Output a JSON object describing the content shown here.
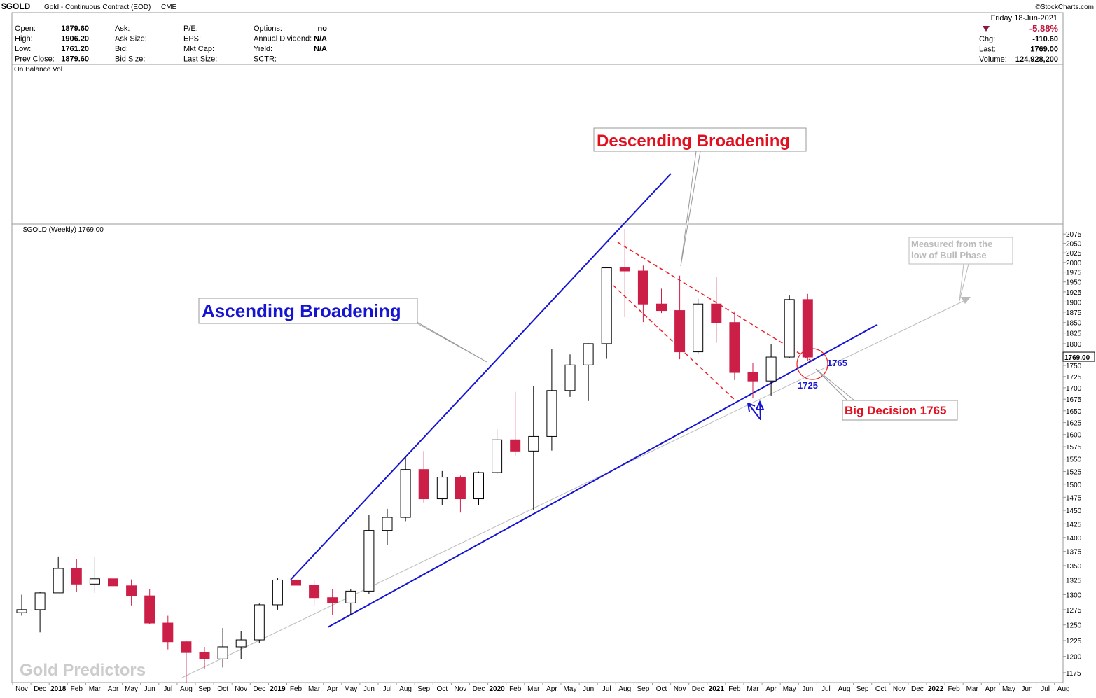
{
  "header": {
    "symbol": "$GOLD",
    "title": "Gold - Continuous Contract (EOD)",
    "exchange": "CME",
    "copyright": "©StockCharts.com",
    "date": "Friday  18-Jun-2021",
    "change_pct": "-5.88%",
    "fields": [
      [
        "Open:",
        "1879.60"
      ],
      [
        "High:",
        "1906.20"
      ],
      [
        "Low:",
        "1761.20"
      ],
      [
        "Prev Close:",
        "1879.60"
      ],
      [
        "Ask:",
        ""
      ],
      [
        "Ask Size:",
        ""
      ],
      [
        "Bid:",
        ""
      ],
      [
        "Bid Size:",
        ""
      ],
      [
        "P/E:",
        ""
      ],
      [
        "EPS:",
        ""
      ],
      [
        "Mkt Cap:",
        ""
      ],
      [
        "Last Size:",
        ""
      ],
      [
        "Options:",
        "no"
      ],
      [
        "Annual Dividend:",
        "N/A"
      ],
      [
        "Yield:",
        "N/A"
      ],
      [
        "SCTR:",
        ""
      ]
    ],
    "right_fields": [
      [
        "Chg:",
        "-110.60"
      ],
      [
        "Last:",
        "1769.00"
      ],
      [
        "Volume:",
        "124,928,200"
      ]
    ],
    "indicator": "On Balance Vol",
    "watermark": "Gold Predictors"
  },
  "chart_data": {
    "type": "candlestick",
    "legend": "$GOLD (Weekly) 1769.00",
    "last_label": "1769.00",
    "log_scale": true,
    "up_color": "#ffffff",
    "down_color": "#cc1f48",
    "x": [
      "2017-11",
      "2017-12",
      "2018-01",
      "2018-02",
      "2018-03",
      "2018-04",
      "2018-05",
      "2018-06",
      "2018-07",
      "2018-08",
      "2018-09",
      "2018-10",
      "2018-11",
      "2018-12",
      "2019-01",
      "2019-02",
      "2019-03",
      "2019-04",
      "2019-05",
      "2019-06",
      "2019-07",
      "2019-08",
      "2019-09",
      "2019-10",
      "2019-11",
      "2019-12",
      "2020-01",
      "2020-02",
      "2020-03",
      "2020-04",
      "2020-05",
      "2020-06",
      "2020-07",
      "2020-08",
      "2020-09",
      "2020-10",
      "2020-11",
      "2020-12",
      "2021-01",
      "2021-02",
      "2021-03",
      "2021-04",
      "2021-05",
      "2021-06"
    ],
    "open": [
      1270,
      1275,
      1303,
      1345,
      1318,
      1327,
      1315,
      1298,
      1253,
      1223,
      1206,
      1196,
      1215,
      1226,
      1283,
      1325,
      1316,
      1295,
      1286,
      1306,
      1413,
      1437,
      1529,
      1472,
      1514,
      1472,
      1523,
      1589,
      1566,
      1596,
      1694,
      1751,
      1800,
      1986,
      1978,
      1895,
      1879,
      1781,
      1895,
      1850,
      1734,
      1715,
      1769,
      1906
    ],
    "high": [
      1300,
      1305,
      1366,
      1362,
      1365,
      1369,
      1326,
      1309,
      1265,
      1225,
      1215,
      1245,
      1240,
      1285,
      1328,
      1350,
      1325,
      1310,
      1310,
      1442,
      1453,
      1555,
      1566,
      1526,
      1517,
      1525,
      1611,
      1691,
      1704,
      1788,
      1775,
      1801,
      1985,
      2089,
      1992,
      1933,
      1966,
      1908,
      1962,
      1877,
      1755,
      1799,
      1916,
      1920
    ],
    "low": [
      1265,
      1238,
      1303,
      1305,
      1303,
      1310,
      1282,
      1251,
      1211,
      1160,
      1180,
      1183,
      1196,
      1221,
      1275,
      1310,
      1281,
      1266,
      1267,
      1301,
      1386,
      1430,
      1465,
      1460,
      1446,
      1460,
      1520,
      1557,
      1451,
      1567,
      1680,
      1671,
      1765,
      1863,
      1851,
      1873,
      1764,
      1776,
      1802,
      1717,
      1677,
      1682,
      1767,
      1761
    ],
    "close": [
      1275,
      1303,
      1345,
      1318,
      1327,
      1315,
      1298,
      1253,
      1223,
      1206,
      1196,
      1215,
      1226,
      1283,
      1325,
      1316,
      1295,
      1286,
      1306,
      1413,
      1437,
      1529,
      1472,
      1514,
      1472,
      1523,
      1589,
      1566,
      1596,
      1694,
      1751,
      1800,
      1986,
      1978,
      1895,
      1879,
      1781,
      1895,
      1850,
      1734,
      1715,
      1769,
      1906,
      1769
    ],
    "ylim": [
      1160,
      2102
    ],
    "yticks": [
      1175,
      1200,
      1225,
      1250,
      1275,
      1300,
      1325,
      1350,
      1375,
      1400,
      1425,
      1450,
      1475,
      1500,
      1525,
      1550,
      1575,
      1600,
      1625,
      1650,
      1675,
      1700,
      1725,
      1750,
      1775,
      1800,
      1825,
      1850,
      1875,
      1900,
      1925,
      1950,
      1975,
      2000,
      2025,
      2050,
      2075
    ],
    "xticks": [
      {
        "value": "2017-11",
        "label": "Nov"
      },
      {
        "value": "2017-12",
        "label": "Dec"
      },
      {
        "value": "2018-01",
        "label": "2018"
      },
      {
        "value": "2018-02",
        "label": "Feb"
      },
      {
        "value": "2018-03",
        "label": "Mar"
      },
      {
        "value": "2018-04",
        "label": "Apr"
      },
      {
        "value": "2018-05",
        "label": "May"
      },
      {
        "value": "2018-06",
        "label": "Jun"
      },
      {
        "value": "2018-07",
        "label": "Jul"
      },
      {
        "value": "2018-08",
        "label": "Aug"
      },
      {
        "value": "2018-09",
        "label": "Sep"
      },
      {
        "value": "2018-10",
        "label": "Oct"
      },
      {
        "value": "2018-11",
        "label": "Nov"
      },
      {
        "value": "2018-12",
        "label": "Dec"
      },
      {
        "value": "2019-01",
        "label": "2019"
      },
      {
        "value": "2019-02",
        "label": "Feb"
      },
      {
        "value": "2019-03",
        "label": "Mar"
      },
      {
        "value": "2019-04",
        "label": "Apr"
      },
      {
        "value": "2019-05",
        "label": "May"
      },
      {
        "value": "2019-06",
        "label": "Jun"
      },
      {
        "value": "2019-07",
        "label": "Jul"
      },
      {
        "value": "2019-08",
        "label": "Aug"
      },
      {
        "value": "2019-09",
        "label": "Sep"
      },
      {
        "value": "2019-10",
        "label": "Oct"
      },
      {
        "value": "2019-11",
        "label": "Nov"
      },
      {
        "value": "2019-12",
        "label": "Dec"
      },
      {
        "value": "2020-01",
        "label": "2020"
      },
      {
        "value": "2020-02",
        "label": "Feb"
      },
      {
        "value": "2020-03",
        "label": "Mar"
      },
      {
        "value": "2020-04",
        "label": "Apr"
      },
      {
        "value": "2020-05",
        "label": "May"
      },
      {
        "value": "2020-06",
        "label": "Jun"
      },
      {
        "value": "2020-07",
        "label": "Jul"
      },
      {
        "value": "2020-08",
        "label": "Aug"
      },
      {
        "value": "2020-09",
        "label": "Sep"
      },
      {
        "value": "2020-10",
        "label": "Oct"
      },
      {
        "value": "2020-11",
        "label": "Nov"
      },
      {
        "value": "2020-12",
        "label": "Dec"
      },
      {
        "value": "2021-01",
        "label": "2021"
      },
      {
        "value": "2021-02",
        "label": "Feb"
      },
      {
        "value": "2021-03",
        "label": "Mar"
      },
      {
        "value": "2021-04",
        "label": "Apr"
      },
      {
        "value": "2021-05",
        "label": "May"
      },
      {
        "value": "2021-06",
        "label": "Jun"
      },
      {
        "value": "2021-07",
        "label": "Jul"
      },
      {
        "value": "2021-08",
        "label": "Aug"
      },
      {
        "value": "2021-09",
        "label": "Sep"
      },
      {
        "value": "2021-10",
        "label": "Oct"
      },
      {
        "value": "2021-11",
        "label": "Nov"
      },
      {
        "value": "2021-12",
        "label": "Dec"
      },
      {
        "value": "2022-01",
        "label": "2022"
      },
      {
        "value": "2022-02",
        "label": "Feb"
      },
      {
        "value": "2022-03",
        "label": "Mar"
      },
      {
        "value": "2022-04",
        "label": "Apr"
      },
      {
        "value": "2022-05",
        "label": "May"
      },
      {
        "value": "2022-06",
        "label": "Jun"
      },
      {
        "value": "2022-07",
        "label": "Jul"
      },
      {
        "value": "2022-08",
        "label": "Aug"
      }
    ],
    "annotations": {
      "descending": "Descending Broadening",
      "ascending": "Ascending Broadening",
      "measured": [
        "Measured from the",
        "low of Bull Phase"
      ],
      "decision": "Big Decision 1765",
      "level_1765": "1765",
      "level_1725": "1725"
    }
  }
}
